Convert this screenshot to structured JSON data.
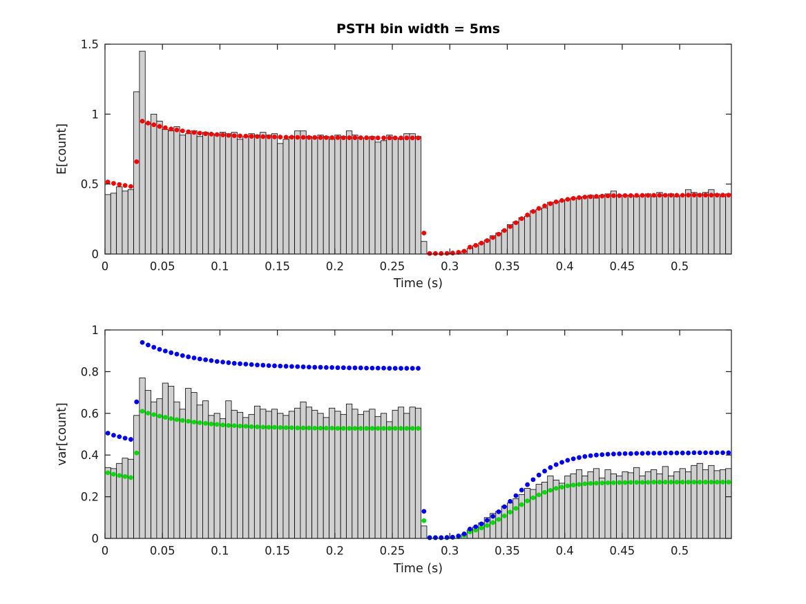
{
  "figure": {
    "background": "#ffffff"
  },
  "chart_data": [
    {
      "type": "bar",
      "subtype": "histogram-with-dot-overlay",
      "title": "PSTH bin width = 5ms",
      "xlabel": "Time (s)",
      "ylabel": "E[count]",
      "xlim": [
        0,
        0.545
      ],
      "ylim": [
        0,
        1.5
      ],
      "bin_width_s": 0.005,
      "n_bins": 109,
      "grid": false,
      "legend": "none",
      "xticks": {
        "values": [
          0,
          0.05,
          0.1,
          0.15,
          0.2,
          0.25,
          0.3,
          0.35,
          0.4,
          0.45,
          0.5
        ],
        "labels": [
          "0",
          "0.05",
          "0.1",
          "0.15",
          "0.2",
          "0.25",
          "0.3",
          "0.35",
          "0.4",
          "0.45",
          "0.5"
        ]
      },
      "yticks": {
        "values": [
          0,
          0.5,
          1,
          1.5
        ],
        "labels": [
          "0",
          "0.5",
          "1",
          "1.5"
        ]
      },
      "bar_fill": "#d0d0d0",
      "bar_edge": "#000000",
      "bars": [
        0.425,
        0.435,
        0.48,
        0.45,
        0.46,
        1.16,
        1.45,
        0.93,
        1.0,
        0.95,
        0.89,
        0.88,
        0.91,
        0.85,
        0.86,
        0.88,
        0.84,
        0.87,
        0.86,
        0.85,
        0.87,
        0.86,
        0.87,
        0.82,
        0.84,
        0.86,
        0.85,
        0.87,
        0.85,
        0.86,
        0.79,
        0.82,
        0.84,
        0.88,
        0.88,
        0.84,
        0.83,
        0.85,
        0.84,
        0.82,
        0.85,
        0.84,
        0.88,
        0.85,
        0.83,
        0.83,
        0.84,
        0.8,
        0.81,
        0.85,
        0.83,
        0.82,
        0.86,
        0.86,
        0.84,
        0.09,
        0,
        0,
        0,
        0,
        0,
        0,
        0.02,
        0.04,
        0.06,
        0.08,
        0.1,
        0.13,
        0.15,
        0.17,
        0.21,
        0.23,
        0.26,
        0.27,
        0.31,
        0.32,
        0.33,
        0.37,
        0.37,
        0.38,
        0.39,
        0.4,
        0.4,
        0.41,
        0.42,
        0.4,
        0.42,
        0.43,
        0.45,
        0.42,
        0.42,
        0.42,
        0.41,
        0.42,
        0.43,
        0.41,
        0.44,
        0.42,
        0.43,
        0.41,
        0.42,
        0.46,
        0.44,
        0.43,
        0.44,
        0.46,
        0.43,
        0.41,
        0.43
      ],
      "series": [
        {
          "name": "expected-count-dots",
          "color": "#ff0000",
          "marker": "dot",
          "values": [
            0.515,
            0.505,
            0.497,
            0.49,
            0.483,
            0.66,
            0.95,
            0.936,
            0.924,
            0.912,
            0.903,
            0.894,
            0.887,
            0.88,
            0.874,
            0.869,
            0.864,
            0.86,
            0.857,
            0.854,
            0.851,
            0.848,
            0.846,
            0.844,
            0.843,
            0.841,
            0.84,
            0.839,
            0.838,
            0.837,
            0.836,
            0.835,
            0.835,
            0.834,
            0.834,
            0.833,
            0.833,
            0.832,
            0.832,
            0.832,
            0.832,
            0.831,
            0.831,
            0.831,
            0.831,
            0.831,
            0.83,
            0.83,
            0.83,
            0.83,
            0.83,
            0.83,
            0.83,
            0.83,
            0.83,
            0.15,
            0.004,
            0.004,
            0.004,
            0.005,
            0.007,
            0.012,
            0.02,
            0.049,
            0.062,
            0.078,
            0.096,
            0.118,
            0.142,
            0.168,
            0.196,
            0.224,
            0.253,
            0.279,
            0.304,
            0.326,
            0.344,
            0.36,
            0.373,
            0.383,
            0.391,
            0.398,
            0.403,
            0.407,
            0.41,
            0.412,
            0.414,
            0.416,
            0.417,
            0.417,
            0.418,
            0.418,
            0.419,
            0.419,
            0.419,
            0.42,
            0.42,
            0.42,
            0.42,
            0.42,
            0.42,
            0.421,
            0.421,
            0.421,
            0.421,
            0.421,
            0.421,
            0.421,
            0.421
          ]
        }
      ]
    },
    {
      "type": "bar",
      "subtype": "histogram-with-dot-overlay",
      "title": "",
      "xlabel": "Time (s)",
      "ylabel": "var[count]",
      "xlim": [
        0,
        0.545
      ],
      "ylim": [
        0,
        1
      ],
      "bin_width_s": 0.005,
      "n_bins": 109,
      "grid": false,
      "legend": "none",
      "xticks": {
        "values": [
          0,
          0.05,
          0.1,
          0.15,
          0.2,
          0.25,
          0.3,
          0.35,
          0.4,
          0.45,
          0.5
        ],
        "labels": [
          "0",
          "0.05",
          "0.1",
          "0.15",
          "0.2",
          "0.25",
          "0.3",
          "0.35",
          "0.4",
          "0.45",
          "0.5"
        ]
      },
      "yticks": {
        "values": [
          0,
          0.2,
          0.4,
          0.6,
          0.8,
          1
        ],
        "labels": [
          "0",
          "0.2",
          "0.4",
          "0.6",
          "0.8",
          "1"
        ]
      },
      "bar_fill": "#d0d0d0",
      "bar_edge": "#000000",
      "bars": [
        0.34,
        0.335,
        0.36,
        0.385,
        0.38,
        0.59,
        0.77,
        0.71,
        0.655,
        0.67,
        0.745,
        0.73,
        0.655,
        0.62,
        0.72,
        0.7,
        0.64,
        0.66,
        0.59,
        0.6,
        0.575,
        0.66,
        0.615,
        0.605,
        0.58,
        0.595,
        0.635,
        0.62,
        0.61,
        0.62,
        0.6,
        0.59,
        0.61,
        0.625,
        0.655,
        0.63,
        0.615,
        0.6,
        0.58,
        0.625,
        0.61,
        0.595,
        0.645,
        0.62,
        0.595,
        0.61,
        0.62,
        0.585,
        0.6,
        0.56,
        0.615,
        0.63,
        0.6,
        0.63,
        0.625,
        0.06,
        0,
        0,
        0,
        0,
        0,
        0,
        0.02,
        0.04,
        0.055,
        0.075,
        0.1,
        0.12,
        0.13,
        0.155,
        0.17,
        0.19,
        0.21,
        0.24,
        0.235,
        0.26,
        0.27,
        0.3,
        0.28,
        0.265,
        0.3,
        0.31,
        0.33,
        0.3,
        0.32,
        0.335,
        0.29,
        0.33,
        0.31,
        0.3,
        0.32,
        0.315,
        0.34,
        0.3,
        0.32,
        0.33,
        0.31,
        0.345,
        0.3,
        0.32,
        0.335,
        0.32,
        0.35,
        0.36,
        0.33,
        0.35,
        0.325,
        0.33,
        0.335
      ],
      "series": [
        {
          "name": "variance-green-dots",
          "color": "#00e000",
          "marker": "dot",
          "values": [
            0.315,
            0.308,
            0.302,
            0.297,
            0.292,
            0.41,
            0.61,
            0.601,
            0.594,
            0.587,
            0.581,
            0.575,
            0.57,
            0.566,
            0.562,
            0.558,
            0.555,
            0.552,
            0.549,
            0.547,
            0.544,
            0.542,
            0.541,
            0.539,
            0.538,
            0.536,
            0.535,
            0.534,
            0.533,
            0.533,
            0.532,
            0.531,
            0.531,
            0.53,
            0.53,
            0.53,
            0.529,
            0.529,
            0.529,
            0.529,
            0.528,
            0.528,
            0.528,
            0.528,
            0.528,
            0.528,
            0.528,
            0.528,
            0.528,
            0.528,
            0.528,
            0.528,
            0.528,
            0.528,
            0.528,
            0.085,
            0.003,
            0.003,
            0.003,
            0.003,
            0.005,
            0.008,
            0.015,
            0.031,
            0.04,
            0.05,
            0.062,
            0.076,
            0.091,
            0.108,
            0.126,
            0.144,
            0.162,
            0.18,
            0.195,
            0.209,
            0.221,
            0.231,
            0.24,
            0.246,
            0.252,
            0.256,
            0.259,
            0.262,
            0.264,
            0.265,
            0.266,
            0.267,
            0.267,
            0.268,
            0.268,
            0.269,
            0.269,
            0.269,
            0.269,
            0.27,
            0.27,
            0.27,
            0.27,
            0.27,
            0.27,
            0.27,
            0.27,
            0.27,
            0.27,
            0.27,
            0.27,
            0.27,
            0.27
          ]
        },
        {
          "name": "variance-blue-dots",
          "color": "#0000ff",
          "marker": "dot",
          "values": [
            0.505,
            0.495,
            0.488,
            0.481,
            0.475,
            0.655,
            0.94,
            0.928,
            0.917,
            0.907,
            0.899,
            0.891,
            0.884,
            0.877,
            0.871,
            0.866,
            0.861,
            0.857,
            0.853,
            0.849,
            0.846,
            0.843,
            0.84,
            0.838,
            0.836,
            0.834,
            0.832,
            0.831,
            0.829,
            0.828,
            0.827,
            0.826,
            0.825,
            0.824,
            0.823,
            0.822,
            0.821,
            0.821,
            0.82,
            0.82,
            0.819,
            0.819,
            0.818,
            0.818,
            0.818,
            0.817,
            0.817,
            0.817,
            0.817,
            0.816,
            0.816,
            0.816,
            0.816,
            0.816,
            0.816,
            0.13,
            0.004,
            0.004,
            0.004,
            0.005,
            0.006,
            0.012,
            0.022,
            0.045,
            0.056,
            0.07,
            0.087,
            0.106,
            0.128,
            0.152,
            0.178,
            0.205,
            0.232,
            0.258,
            0.282,
            0.304,
            0.323,
            0.34,
            0.354,
            0.365,
            0.375,
            0.382,
            0.388,
            0.393,
            0.397,
            0.4,
            0.402,
            0.404,
            0.405,
            0.406,
            0.407,
            0.407,
            0.408,
            0.408,
            0.409,
            0.409,
            0.409,
            0.41,
            0.41,
            0.41,
            0.41,
            0.41,
            0.411,
            0.411,
            0.411,
            0.411,
            0.411,
            0.411,
            0.411
          ]
        }
      ]
    }
  ]
}
